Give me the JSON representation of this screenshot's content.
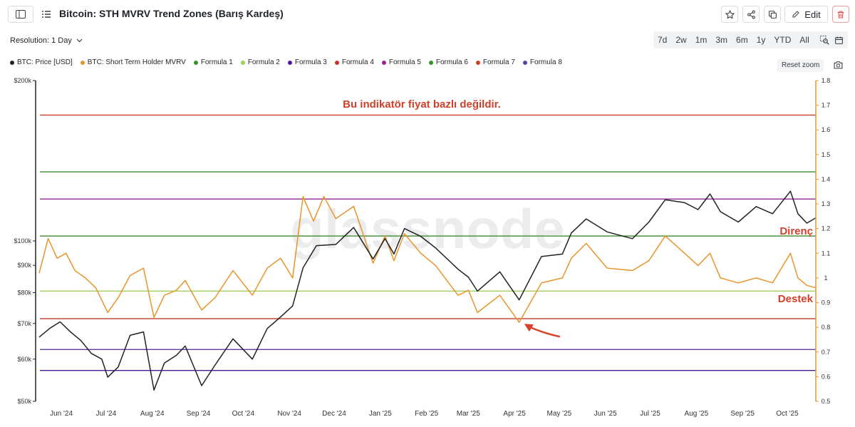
{
  "header": {
    "title": "Bitcoin: STH MVRV Trend Zones (Barış Kardeş)",
    "edit_label": "Edit",
    "icons": [
      "sidebar-toggle-icon",
      "list-icon",
      "star-icon",
      "share-icon",
      "copy-icon",
      "pencil-icon",
      "trash-icon",
      "calendar-icon"
    ]
  },
  "toolbar": {
    "resolution_label": "Resolution: 1 Day",
    "ranges": [
      "7d",
      "2w",
      "1m",
      "3m",
      "6m",
      "1y",
      "YTD",
      "All"
    ],
    "reset_zoom": "Reset zoom"
  },
  "colors": {
    "price": "#222222",
    "mvrv": "#e8952b",
    "formula1": "#3f8b2e",
    "formula2": "#9ed35a",
    "formula3": "#4b1a9e",
    "formula4": "#c0392b",
    "formula5": "#8e2a8e",
    "formula6": "#3f8b2e",
    "formula7": "#d0402a",
    "formula8": "#5e3ea0"
  },
  "chart_data": {
    "type": "line",
    "legend": [
      "BTC: Price [USD]",
      "BTC: Short Term Holder MVRV",
      "Formula 1",
      "Formula 2",
      "Formula 3",
      "Formula 4",
      "Formula 5",
      "Formula 6",
      "Formula 7",
      "Formula 8"
    ],
    "legend_position": "top-left",
    "x_tick_labels": [
      "Jun '24",
      "Jul '24",
      "Aug '24",
      "Sep '24",
      "Oct '24",
      "Nov '24",
      "Dec '24",
      "Jan '25",
      "Feb '25",
      "Mar '25",
      "Apr '25",
      "May '25",
      "Jun '25",
      "Jul '25",
      "Aug '25",
      "Sep '25",
      "Oct '25"
    ],
    "x_range": [
      "2024-05-20",
      "2025-10-23"
    ],
    "y_left": {
      "scale": "log",
      "ticks": [
        "$50k",
        "$60k",
        "$70k",
        "$80k",
        "$90k",
        "$100k",
        "$200k"
      ],
      "tick_values": [
        50000,
        60000,
        70000,
        80000,
        90000,
        100000,
        200000
      ],
      "range": [
        50000,
        200000
      ]
    },
    "y_right": {
      "scale": "linear",
      "ticks": [
        "0.5",
        "0.6",
        "0.7",
        "0.8",
        "0.9",
        "1",
        "1.1",
        "1.2",
        "1.3",
        "1.4",
        "1.5",
        "1.6",
        "1.7",
        "1.8"
      ],
      "range": [
        0.5,
        1.8
      ]
    },
    "zone_lines": [
      {
        "color_key": "formula7",
        "value": 1.66
      },
      {
        "color_key": "formula6",
        "value": 1.43
      },
      {
        "color_key": "formula5",
        "value": 1.32
      },
      {
        "color_key": "formula1",
        "value": 1.17
      },
      {
        "color_key": "formula2",
        "value": 0.947
      },
      {
        "color_key": "formula4",
        "value": 0.835
      },
      {
        "color_key": "formula8",
        "value": 0.71
      },
      {
        "color_key": "formula3",
        "value": 0.625
      }
    ],
    "series": [
      {
        "name": "BTC: Price [USD]",
        "axis": "left",
        "points": [
          [
            "2024-05-20",
            66000
          ],
          [
            "2024-05-27",
            68500
          ],
          [
            "2024-06-03",
            70500
          ],
          [
            "2024-06-10",
            67500
          ],
          [
            "2024-06-17",
            65000
          ],
          [
            "2024-06-24",
            61500
          ],
          [
            "2024-07-01",
            60000
          ],
          [
            "2024-07-05",
            55500
          ],
          [
            "2024-07-12",
            58000
          ],
          [
            "2024-07-20",
            66500
          ],
          [
            "2024-07-29",
            67500
          ],
          [
            "2024-08-05",
            52500
          ],
          [
            "2024-08-12",
            59000
          ],
          [
            "2024-08-20",
            61000
          ],
          [
            "2024-08-26",
            63500
          ],
          [
            "2024-09-06",
            53500
          ],
          [
            "2024-09-15",
            58500
          ],
          [
            "2024-09-27",
            65500
          ],
          [
            "2024-10-10",
            60000
          ],
          [
            "2024-10-20",
            68500
          ],
          [
            "2024-10-29",
            72000
          ],
          [
            "2024-11-06",
            75500
          ],
          [
            "2024-11-13",
            89000
          ],
          [
            "2024-11-22",
            98000
          ],
          [
            "2024-12-05",
            98500
          ],
          [
            "2024-12-17",
            106000
          ],
          [
            "2024-12-30",
            92500
          ],
          [
            "2025-01-07",
            101000
          ],
          [
            "2025-01-13",
            94500
          ],
          [
            "2025-01-20",
            105500
          ],
          [
            "2025-01-31",
            102000
          ],
          [
            "2025-02-10",
            97000
          ],
          [
            "2025-02-25",
            88500
          ],
          [
            "2025-03-04",
            85500
          ],
          [
            "2025-03-10",
            80500
          ],
          [
            "2025-03-25",
            87500
          ],
          [
            "2025-04-07",
            77500
          ],
          [
            "2025-04-22",
            93500
          ],
          [
            "2025-05-06",
            94500
          ],
          [
            "2025-05-12",
            103500
          ],
          [
            "2025-05-22",
            110000
          ],
          [
            "2025-06-05",
            104000
          ],
          [
            "2025-06-22",
            101000
          ],
          [
            "2025-07-03",
            108500
          ],
          [
            "2025-07-14",
            119500
          ],
          [
            "2025-07-27",
            118000
          ],
          [
            "2025-08-05",
            114500
          ],
          [
            "2025-08-13",
            122500
          ],
          [
            "2025-08-20",
            113500
          ],
          [
            "2025-09-01",
            108500
          ],
          [
            "2025-09-13",
            116000
          ],
          [
            "2025-09-24",
            112500
          ],
          [
            "2025-10-06",
            124000
          ],
          [
            "2025-10-11",
            112500
          ],
          [
            "2025-10-17",
            108000
          ],
          [
            "2025-10-23",
            110500
          ]
        ]
      },
      {
        "name": "BTC: Short Term Holder MVRV",
        "axis": "right",
        "points": [
          [
            "2024-05-20",
            1.02
          ],
          [
            "2024-05-26",
            1.16
          ],
          [
            "2024-06-01",
            1.08
          ],
          [
            "2024-06-07",
            1.1
          ],
          [
            "2024-06-13",
            1.03
          ],
          [
            "2024-06-20",
            1.0
          ],
          [
            "2024-06-27",
            0.96
          ],
          [
            "2024-07-05",
            0.86
          ],
          [
            "2024-07-12",
            0.92
          ],
          [
            "2024-07-20",
            1.01
          ],
          [
            "2024-07-29",
            1.04
          ],
          [
            "2024-08-05",
            0.84
          ],
          [
            "2024-08-12",
            0.93
          ],
          [
            "2024-08-20",
            0.95
          ],
          [
            "2024-08-26",
            0.99
          ],
          [
            "2024-09-06",
            0.87
          ],
          [
            "2024-09-15",
            0.92
          ],
          [
            "2024-09-27",
            1.03
          ],
          [
            "2024-10-10",
            0.93
          ],
          [
            "2024-10-20",
            1.04
          ],
          [
            "2024-10-29",
            1.08
          ],
          [
            "2024-11-06",
            1.0
          ],
          [
            "2024-11-13",
            1.33
          ],
          [
            "2024-11-20",
            1.23
          ],
          [
            "2024-11-27",
            1.33
          ],
          [
            "2024-12-05",
            1.24
          ],
          [
            "2024-12-17",
            1.29
          ],
          [
            "2024-12-30",
            1.06
          ],
          [
            "2025-01-07",
            1.17
          ],
          [
            "2025-01-13",
            1.07
          ],
          [
            "2025-01-20",
            1.18
          ],
          [
            "2025-01-31",
            1.1
          ],
          [
            "2025-02-10",
            1.05
          ],
          [
            "2025-02-25",
            0.93
          ],
          [
            "2025-03-04",
            0.95
          ],
          [
            "2025-03-10",
            0.86
          ],
          [
            "2025-03-25",
            0.93
          ],
          [
            "2025-04-07",
            0.82
          ],
          [
            "2025-04-22",
            0.98
          ],
          [
            "2025-05-06",
            1.0
          ],
          [
            "2025-05-12",
            1.08
          ],
          [
            "2025-05-22",
            1.14
          ],
          [
            "2025-06-05",
            1.04
          ],
          [
            "2025-06-22",
            1.03
          ],
          [
            "2025-07-03",
            1.07
          ],
          [
            "2025-07-14",
            1.17
          ],
          [
            "2025-07-27",
            1.1
          ],
          [
            "2025-08-05",
            1.05
          ],
          [
            "2025-08-13",
            1.1
          ],
          [
            "2025-08-20",
            1.0
          ],
          [
            "2025-09-01",
            0.98
          ],
          [
            "2025-09-13",
            1.0
          ],
          [
            "2025-09-24",
            0.98
          ],
          [
            "2025-10-06",
            1.1
          ],
          [
            "2025-10-11",
            1.0
          ],
          [
            "2025-10-17",
            0.97
          ],
          [
            "2025-10-23",
            0.96
          ]
        ]
      }
    ],
    "annotations": [
      {
        "text": "Bu indikatör fiyat bazlı değildir.",
        "color_key": "formula7"
      },
      {
        "text": "Direnç",
        "color_key": "formula7"
      },
      {
        "text": "Destek",
        "color_key": "formula7"
      }
    ],
    "arrow_target": [
      "2025-04-09",
      0.82
    ],
    "watermark": "glassnode",
    "grid": false
  }
}
